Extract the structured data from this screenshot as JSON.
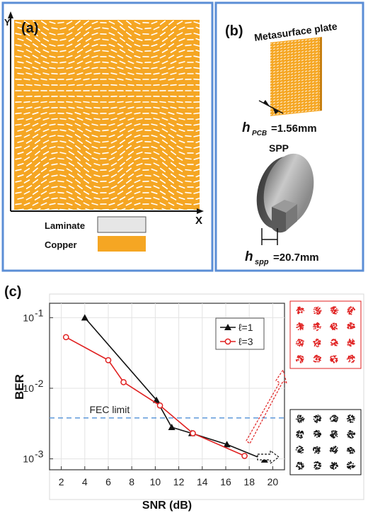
{
  "panel_a": {
    "label": "(a)",
    "x_axis": "X",
    "y_axis": "Y",
    "legend": [
      {
        "name": "Laminate",
        "color": "#e6e6e6"
      },
      {
        "name": "Copper",
        "color": "#f5a623"
      }
    ]
  },
  "panel_b": {
    "label": "(b)",
    "plate_title": "Metasurface plate",
    "h_pcb_sym": "h",
    "h_pcb_sub": "PCB",
    "h_pcb_val": "=1.56mm",
    "spp_title": "SPP",
    "h_spp_sym": "h",
    "h_spp_sub": "spp",
    "h_spp_val": "=20.7mm"
  },
  "panel_c": {
    "label": "(c)",
    "fec_label": "FEC limit"
  },
  "colors": {
    "frame_blue": "#5b8ed6",
    "copper": "#f5a623",
    "laminate": "#e6e6e6",
    "series1": "#111111",
    "series2": "#e02020",
    "fec_line": "#6aa0dd"
  },
  "chart_data": {
    "type": "line",
    "xlabel": "SNR (dB)",
    "ylabel": "BER",
    "xlim": [
      1,
      21
    ],
    "ylim": [
      0.0007,
      0.16
    ],
    "yscale": "log",
    "x_ticks": [
      2,
      4,
      6,
      8,
      10,
      12,
      14,
      16,
      18,
      20
    ],
    "y_ticks": [
      {
        "value": 0.1,
        "base": "10",
        "exp": "-1"
      },
      {
        "value": 0.01,
        "base": "10",
        "exp": "-2"
      },
      {
        "value": 0.001,
        "base": "10",
        "exp": "-3"
      }
    ],
    "fec_limit": 0.0038,
    "grid": true,
    "legend_position": "top-right",
    "series": [
      {
        "name": "ℓ=1",
        "color": "#111111",
        "marker": "triangle",
        "x": [
          4,
          10.1,
          11.4,
          13.1,
          16.1,
          19.3
        ],
        "y": [
          0.1,
          0.0068,
          0.0028,
          0.0023,
          0.0016,
          0.00097
        ]
      },
      {
        "name": "ℓ=3",
        "color": "#e02020",
        "marker": "circle",
        "x": [
          2.4,
          6,
          7.3,
          10.4,
          13.2,
          17.6
        ],
        "y": [
          0.053,
          0.025,
          0.0122,
          0.0057,
          0.0023,
          0.0011
        ]
      }
    ]
  }
}
